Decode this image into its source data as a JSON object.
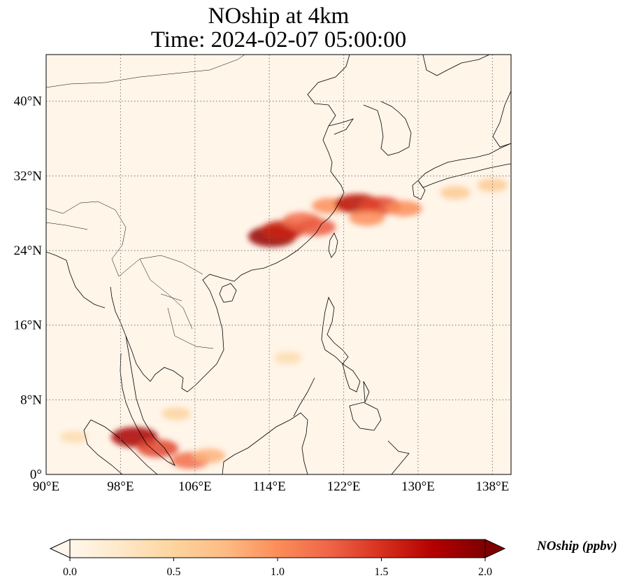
{
  "title": {
    "line1": "NOship at 4km",
    "line2": "Time: 2024-02-07 05:00:00"
  },
  "map": {
    "lon_range": [
      90,
      140
    ],
    "lat_range": [
      0,
      45
    ],
    "lon_ticks": [
      {
        "value": 90,
        "label": "90°E"
      },
      {
        "value": 98,
        "label": "98°E"
      },
      {
        "value": 106,
        "label": "106°E"
      },
      {
        "value": 114,
        "label": "114°E"
      },
      {
        "value": 122,
        "label": "122°E"
      },
      {
        "value": 130,
        "label": "130°E"
      },
      {
        "value": 138,
        "label": "138°E"
      }
    ],
    "lat_ticks": [
      {
        "value": 0,
        "label": "0°"
      },
      {
        "value": 8,
        "label": "8°N"
      },
      {
        "value": 16,
        "label": "16°N"
      },
      {
        "value": 24,
        "label": "24°N"
      },
      {
        "value": 32,
        "label": "32°N"
      },
      {
        "value": 40,
        "label": "40°N"
      }
    ],
    "gridlines": true,
    "background_color": "#fff5e9",
    "coastline_color": "#000000",
    "plumes": [
      {
        "lon": 114.3,
        "lat": 25.5,
        "value": 1.9
      },
      {
        "lon": 115.5,
        "lat": 26.2,
        "value": 1.6
      },
      {
        "lon": 117.5,
        "lat": 27.2,
        "value": 1.2
      },
      {
        "lon": 119.0,
        "lat": 26.5,
        "value": 1.3
      },
      {
        "lon": 120.5,
        "lat": 28.8,
        "value": 1.0
      },
      {
        "lon": 123.5,
        "lat": 29.0,
        "value": 1.7
      },
      {
        "lon": 126.0,
        "lat": 28.8,
        "value": 1.4
      },
      {
        "lon": 124.5,
        "lat": 27.5,
        "value": 1.0
      },
      {
        "lon": 128.5,
        "lat": 28.5,
        "value": 1.0
      },
      {
        "lon": 134.0,
        "lat": 30.2,
        "value": 0.6
      },
      {
        "lon": 138.0,
        "lat": 31.0,
        "value": 0.6
      },
      {
        "lon": 99.5,
        "lat": 4.0,
        "value": 1.8
      },
      {
        "lon": 102.0,
        "lat": 2.8,
        "value": 1.4
      },
      {
        "lon": 105.5,
        "lat": 1.5,
        "value": 1.2
      },
      {
        "lon": 107.5,
        "lat": 2.0,
        "value": 0.8
      },
      {
        "lon": 93.0,
        "lat": 4.0,
        "value": 0.4
      },
      {
        "lon": 104.0,
        "lat": 6.5,
        "value": 0.5
      },
      {
        "lon": 116.0,
        "lat": 12.5,
        "value": 0.4
      }
    ]
  },
  "colorbar": {
    "label": "NOship (ppbv)",
    "min": 0.0,
    "max": 2.0,
    "extend": "both",
    "ticks": [
      "0.0",
      "0.5",
      "1.0",
      "1.5",
      "2.0"
    ],
    "colormap": "OrRd",
    "stops": [
      "#fff7ec",
      "#fee8c8",
      "#fdd49e",
      "#fdbb84",
      "#fc8d59",
      "#ef6548",
      "#d7301f",
      "#b30000",
      "#7f0000"
    ]
  }
}
